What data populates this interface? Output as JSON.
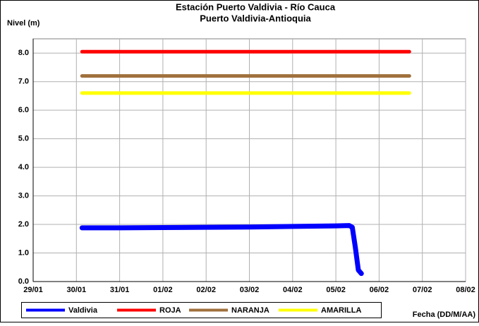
{
  "chart_data": {
    "type": "line",
    "title": "Estación Puerto Valdivia - Río Cauca",
    "subtitle": "Puerto Valdivia-Antioquia",
    "y_label": "Nivel (m)",
    "x_label": "Fecha (DD/M/AA)",
    "xlim": [
      0,
      10
    ],
    "xticks": [
      {
        "value": 0,
        "label": "29/01"
      },
      {
        "value": 1,
        "label": "30/01"
      },
      {
        "value": 2,
        "label": "31/01"
      },
      {
        "value": 3,
        "label": "01/02"
      },
      {
        "value": 4,
        "label": "02/02"
      },
      {
        "value": 5,
        "label": "03/02"
      },
      {
        "value": 6,
        "label": "04/02"
      },
      {
        "value": 7,
        "label": "05/02"
      },
      {
        "value": 8,
        "label": "06/02"
      },
      {
        "value": 9,
        "label": "07/02"
      },
      {
        "value": 10,
        "label": "08/02"
      }
    ],
    "ylim": [
      0,
      8.5
    ],
    "yticks": [
      {
        "value": 0,
        "label": "0.0"
      },
      {
        "value": 1,
        "label": "1.0"
      },
      {
        "value": 2,
        "label": "2.0"
      },
      {
        "value": 3,
        "label": "3.0"
      },
      {
        "value": 4,
        "label": "4.0"
      },
      {
        "value": 5,
        "label": "5.0"
      },
      {
        "value": 6,
        "label": "6.0"
      },
      {
        "value": 7,
        "label": "7.0"
      },
      {
        "value": 8,
        "label": "8.0"
      }
    ],
    "grid": true,
    "legend": "bottom-left",
    "series": [
      {
        "name": "Valdivia",
        "color": "#0000ff",
        "width": 7,
        "x": [
          1.13,
          2,
          3,
          4,
          5,
          6,
          7,
          7.31,
          7.38,
          7.45,
          7.52,
          7.59
        ],
        "values": [
          1.88,
          1.88,
          1.89,
          1.9,
          1.91,
          1.93,
          1.95,
          1.96,
          1.9,
          1.2,
          0.4,
          0.28
        ]
      },
      {
        "name": "ROJA",
        "color": "#ff0000",
        "width": 5,
        "x": [
          1.13,
          8.7
        ],
        "values": [
          8.05,
          8.05
        ]
      },
      {
        "name": "NARANJA",
        "color": "#a0703c",
        "width": 5,
        "x": [
          1.13,
          8.7
        ],
        "values": [
          7.2,
          7.2
        ]
      },
      {
        "name": "AMARILLA",
        "color": "#ffff00",
        "width": 5,
        "x": [
          1.13,
          8.7
        ],
        "values": [
          6.6,
          6.6
        ]
      }
    ]
  }
}
